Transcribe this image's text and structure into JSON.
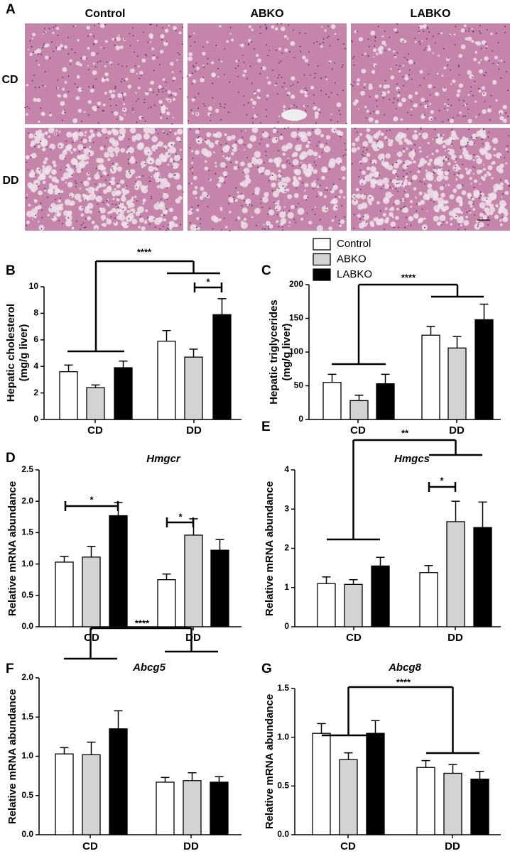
{
  "panel_a": {
    "label": "A",
    "columns": [
      "Control",
      "ABKO",
      "LABKO"
    ],
    "rows": [
      "CD",
      "DD"
    ]
  },
  "chart_data": [
    {
      "type": "bar",
      "panel": "B",
      "ylabel": [
        "Hepatic cholesterol",
        "(mg/g liver)"
      ],
      "categories": [
        "CD",
        "DD"
      ],
      "series": [
        {
          "name": "Control",
          "color": "#ffffff",
          "values": [
            3.6,
            5.9
          ],
          "errors": [
            0.5,
            0.8
          ]
        },
        {
          "name": "ABKO",
          "color": "#d3d3d3",
          "values": [
            2.4,
            4.7
          ],
          "errors": [
            0.2,
            0.6
          ]
        },
        {
          "name": "LABKO",
          "color": "#000000",
          "values": [
            3.9,
            7.9
          ],
          "errors": [
            0.5,
            1.2
          ]
        }
      ],
      "ylim": [
        0,
        10
      ],
      "yticks": [
        0,
        2,
        4,
        6,
        8,
        10
      ],
      "annotations": [
        "****",
        "*"
      ]
    },
    {
      "type": "bar",
      "panel": "C",
      "ylabel": [
        "Hepatic triglycerides",
        "(mg/g liver)"
      ],
      "categories": [
        "CD",
        "DD"
      ],
      "series": [
        {
          "color": "#ffffff",
          "values": [
            55,
            125
          ],
          "errors": [
            12,
            13
          ]
        },
        {
          "color": "#d3d3d3",
          "values": [
            28,
            106
          ],
          "errors": [
            8,
            17
          ]
        },
        {
          "color": "#000000",
          "values": [
            53,
            148
          ],
          "errors": [
            14,
            23
          ]
        }
      ],
      "ylim": [
        0,
        200
      ],
      "yticks": [
        0,
        50,
        100,
        150,
        200
      ],
      "annotations": [
        "****"
      ]
    },
    {
      "type": "bar",
      "panel": "D",
      "title": "Hmgcr",
      "ylabel": [
        "Relative mRNA abundance"
      ],
      "categories": [
        "CD",
        "DD"
      ],
      "series": [
        {
          "color": "#ffffff",
          "values": [
            1.03,
            0.75
          ],
          "errors": [
            0.09,
            0.09
          ]
        },
        {
          "color": "#d3d3d3",
          "values": [
            1.11,
            1.46
          ],
          "errors": [
            0.17,
            0.26
          ]
        },
        {
          "color": "#000000",
          "values": [
            1.77,
            1.22
          ],
          "errors": [
            0.21,
            0.17
          ]
        }
      ],
      "ylim": [
        0,
        2.5
      ],
      "yticks": [
        {
          "value": 0,
          "label": "0.0"
        },
        0.5,
        {
          "value": 1,
          "label": "1.0"
        },
        1.5,
        {
          "value": 2,
          "label": "2.0"
        },
        2.5
      ],
      "annotations": [
        "*",
        "*"
      ]
    },
    {
      "type": "bar",
      "panel": "E",
      "title": "Hmgcs",
      "ylabel": [
        "Relative mRNA abundance"
      ],
      "categories": [
        "CD",
        "DD"
      ],
      "series": [
        {
          "color": "#ffffff",
          "values": [
            1.1,
            1.38
          ],
          "errors": [
            0.17,
            0.18
          ]
        },
        {
          "color": "#d3d3d3",
          "values": [
            1.08,
            2.68
          ],
          "errors": [
            0.12,
            0.52
          ]
        },
        {
          "color": "#000000",
          "values": [
            1.55,
            2.53
          ],
          "errors": [
            0.22,
            0.65
          ]
        }
      ],
      "ylim": [
        0,
        4
      ],
      "yticks": [
        0,
        1,
        2,
        3,
        4
      ],
      "annotations": [
        "**",
        "*"
      ]
    },
    {
      "type": "bar",
      "panel": "F",
      "title": "Abcg5",
      "ylabel": [
        "Relative mRNA abundance"
      ],
      "categories": [
        "CD",
        "DD"
      ],
      "series": [
        {
          "color": "#ffffff",
          "values": [
            1.03,
            0.67
          ],
          "errors": [
            0.08,
            0.06
          ]
        },
        {
          "color": "#d3d3d3",
          "values": [
            1.02,
            0.69
          ],
          "errors": [
            0.16,
            0.1
          ]
        },
        {
          "color": "#000000",
          "values": [
            1.35,
            0.67
          ],
          "errors": [
            0.23,
            0.07
          ]
        }
      ],
      "ylim": [
        0,
        2
      ],
      "yticks": [
        {
          "value": 0,
          "label": "0.0"
        },
        0.5,
        {
          "value": 1,
          "label": "1.0"
        },
        1.5,
        {
          "value": 2,
          "label": "2.0"
        }
      ],
      "annotations": [
        "****"
      ]
    },
    {
      "type": "bar",
      "panel": "G",
      "title": "Abcg8",
      "ylabel": [
        "Relative mRNA abundance"
      ],
      "categories": [
        "CD",
        "DD"
      ],
      "series": [
        {
          "color": "#ffffff",
          "values": [
            1.04,
            0.69
          ],
          "errors": [
            0.1,
            0.07
          ]
        },
        {
          "color": "#d3d3d3",
          "values": [
            0.77,
            0.63
          ],
          "errors": [
            0.07,
            0.09
          ]
        },
        {
          "color": "#000000",
          "values": [
            1.04,
            0.57
          ],
          "errors": [
            0.13,
            0.08
          ]
        }
      ],
      "ylim": [
        0,
        1.5
      ],
      "yticks": [
        {
          "value": 0,
          "label": "0.0"
        },
        0.5,
        {
          "value": 1,
          "label": "1.0"
        },
        1.5
      ],
      "annotations": [
        "****"
      ]
    }
  ]
}
